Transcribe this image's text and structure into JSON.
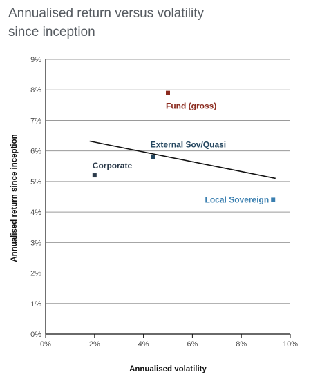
{
  "title_lines": [
    "Annualised return versus volatility",
    "since inception"
  ],
  "colors": {
    "title": "#555a60",
    "grid": "#9a9a9a",
    "axis": "#111111",
    "trend": "#111111",
    "Fund (gross)": "#8b2a1e",
    "External Sov/Quasi": "#24465f",
    "Corporate": "#2b3a4a",
    "Local Sovereign": "#3a7fb0"
  },
  "chart_data": {
    "type": "scatter",
    "title": "Annualised return versus volatility since inception",
    "xlabel": "Annualised volatility",
    "ylabel": "Annualised return since inception",
    "xlim": [
      0,
      10
    ],
    "ylim": [
      0,
      9
    ],
    "x_ticks": [
      "0%",
      "2%",
      "4%",
      "6%",
      "8%",
      "10%"
    ],
    "y_ticks": [
      "0%",
      "1%",
      "2%",
      "3%",
      "4%",
      "5%",
      "6%",
      "7%",
      "8%",
      "9%"
    ],
    "grid": "horizontal",
    "points": [
      {
        "label": "Fund (gross)",
        "x": 5.0,
        "y": 7.9,
        "marker": "square"
      },
      {
        "label": "External Sov/Quasi",
        "x": 4.4,
        "y": 5.8,
        "marker": "square"
      },
      {
        "label": "Corporate",
        "x": 2.0,
        "y": 5.2,
        "marker": "square"
      },
      {
        "label": "Local Sovereign",
        "x": 9.3,
        "y": 4.4,
        "marker": "square"
      }
    ],
    "trendline": {
      "x": [
        1.8,
        9.4
      ],
      "y": [
        6.32,
        5.1
      ]
    }
  }
}
